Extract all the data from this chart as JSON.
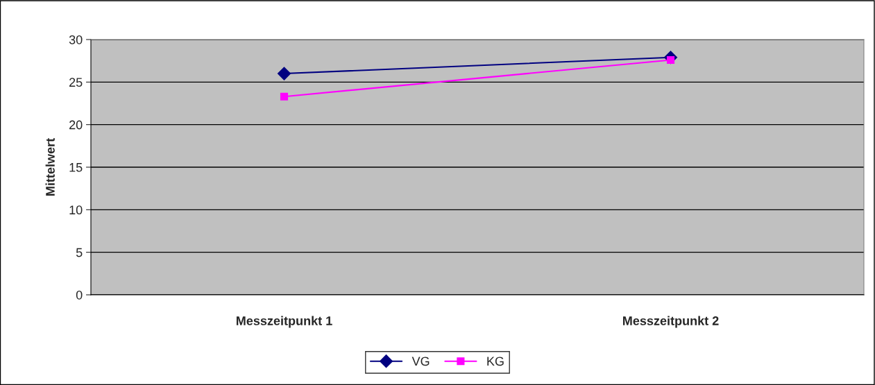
{
  "chart_data": {
    "type": "line",
    "ylabel": "Mittelwert",
    "categories": [
      "Messzeitpunkt 1",
      "Messzeitpunkt 2"
    ],
    "series": [
      {
        "name": "VG",
        "color": "#000080",
        "values": [
          26.0,
          27.9
        ],
        "marker": "diamond"
      },
      {
        "name": "KG",
        "color": "#ff00ff",
        "values": [
          23.3,
          27.6
        ],
        "marker": "square"
      }
    ],
    "ylim": [
      0,
      30
    ],
    "yticks": [
      0,
      5,
      10,
      15,
      20,
      25,
      30
    ],
    "grid": "y",
    "legend": "bottom",
    "line_style": "solid"
  }
}
